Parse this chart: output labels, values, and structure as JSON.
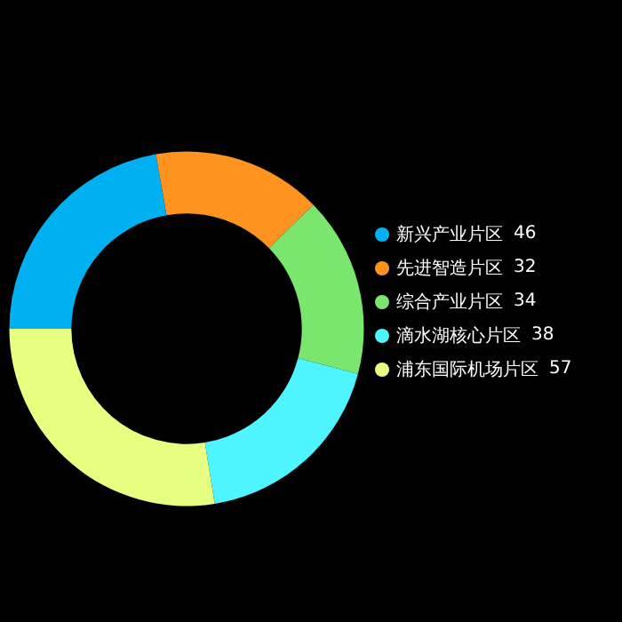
{
  "chart_data": {
    "type": "donut",
    "categories": [
      "新兴产业片区",
      "先进智造片区",
      "综合产业片区",
      "滴水湖核心片区",
      "浦东国际机场片区"
    ],
    "values": [
      46,
      32,
      34,
      38,
      57
    ],
    "colors": [
      "#00b0f0",
      "#ff9320",
      "#7ae66e",
      "#4ef5ff",
      "#e6ff80"
    ],
    "data_labels": true,
    "legend": "right"
  }
}
